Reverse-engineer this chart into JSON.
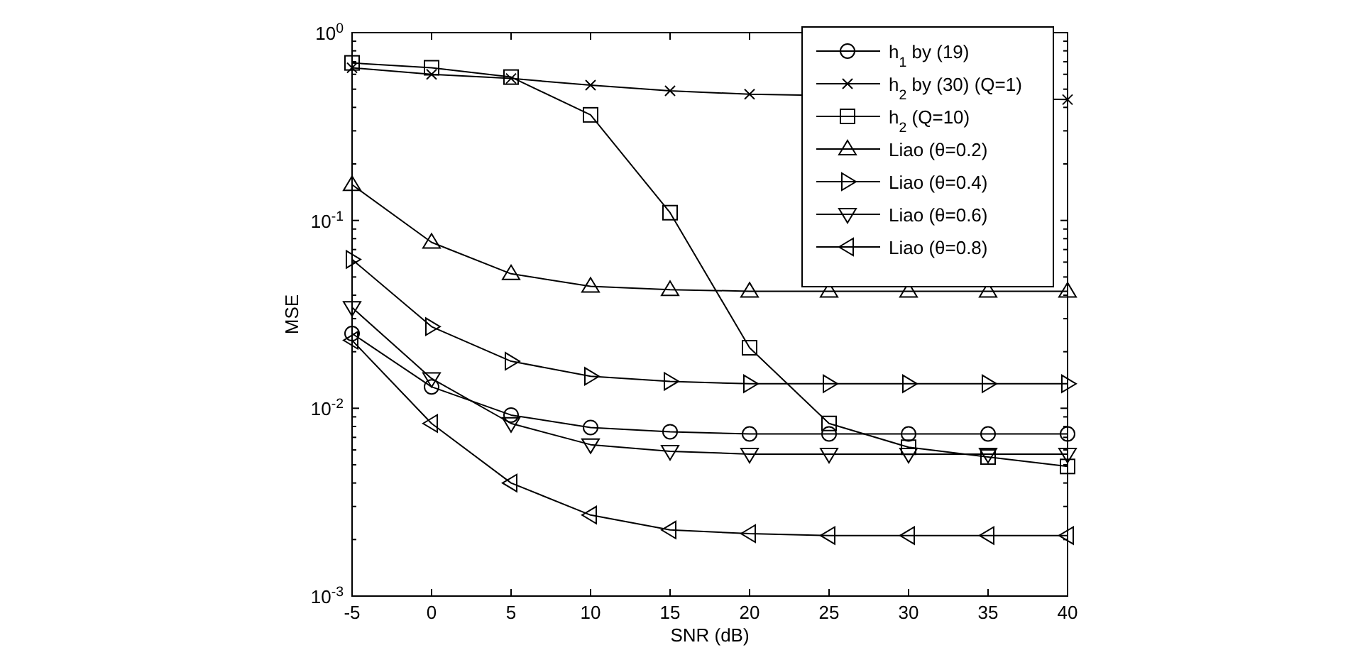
{
  "chart_data": {
    "type": "line",
    "xlabel": "SNR (dB)",
    "ylabel": "MSE",
    "log": "y",
    "legend": "top right",
    "grid": false,
    "x": [
      -5,
      0,
      5,
      10,
      15,
      20,
      25,
      30,
      35,
      40
    ],
    "xlim": [
      -5,
      40
    ],
    "xticks": [
      -5,
      0,
      5,
      10,
      15,
      20,
      25,
      30,
      35,
      40
    ],
    "ylim": [
      0.001,
      1
    ],
    "yticks": [
      {
        "value": 0.001,
        "label": "10$^{-3}$"
      },
      {
        "value": 0.002,
        "label": null
      },
      {
        "value": 0.003,
        "label": null
      },
      {
        "value": 0.004,
        "label": null
      },
      {
        "value": 0.005,
        "label": null
      },
      {
        "value": 0.006,
        "label": null
      },
      {
        "value": 0.007,
        "label": null
      },
      {
        "value": 0.008,
        "label": null
      },
      {
        "value": 0.009,
        "label": null
      },
      {
        "value": 0.01,
        "label": "10$^{-2}$"
      },
      {
        "value": 0.02,
        "label": null
      },
      {
        "value": 0.03,
        "label": null
      },
      {
        "value": 0.04,
        "label": null
      },
      {
        "value": 0.05,
        "label": null
      },
      {
        "value": 0.06,
        "label": null
      },
      {
        "value": 0.07,
        "label": null
      },
      {
        "value": 0.08,
        "label": null
      },
      {
        "value": 0.09,
        "label": null
      },
      {
        "value": 0.1,
        "label": "10$^{-1}$"
      },
      {
        "value": 0.2,
        "label": null
      },
      {
        "value": 0.3,
        "label": null
      },
      {
        "value": 0.4,
        "label": null
      },
      {
        "value": 0.5,
        "label": null
      },
      {
        "value": 0.6,
        "label": null
      },
      {
        "value": 0.7,
        "label": null
      },
      {
        "value": 0.8,
        "label": null
      },
      {
        "value": 0.9,
        "label": null
      },
      {
        "value": 1,
        "label": "10$^{0}$"
      }
    ],
    "series": [
      {
        "name": "h$_{1}$ by (19)",
        "color": "#000000",
        "marker": "circle",
        "values": [
          0.025,
          0.013,
          0.0092,
          0.0079,
          0.0075,
          0.0073,
          0.0073,
          0.0073,
          0.0073,
          0.0073
        ]
      },
      {
        "name": "h$_{2}$ by (30) (Q=1)",
        "color": "#000000",
        "marker": "cross",
        "values": [
          0.65,
          0.6,
          0.57,
          0.525,
          0.49,
          0.47,
          null,
          null,
          null,
          0.44
        ]
      },
      {
        "name": "h$_{2}$ (Q=10)",
        "color": "#000000",
        "marker": "square",
        "values": [
          0.69,
          0.65,
          0.58,
          0.365,
          0.11,
          0.021,
          0.0083,
          0.0062,
          0.0055,
          0.0049
        ]
      },
      {
        "name": "Liao (θ=0.2)",
        "color": "#000000",
        "marker": "triangle",
        "values": [
          0.155,
          0.0765,
          0.052,
          0.0446,
          0.0428,
          0.042,
          0.042,
          0.042,
          0.042,
          0.042
        ]
      },
      {
        "name": "Liao (θ=0.4)",
        "color": "#000000",
        "marker": "triangle-right",
        "values": [
          0.062,
          0.0272,
          0.0178,
          0.0148,
          0.0139,
          0.0135,
          0.0135,
          0.0135,
          0.0135,
          0.0135
        ]
      },
      {
        "name": "Liao (θ=0.6)",
        "color": "#000000",
        "marker": "triangle-down",
        "values": [
          0.0344,
          0.0144,
          0.0083,
          0.0064,
          0.0059,
          0.0057,
          0.0057,
          0.0057,
          0.0057,
          0.0057
        ]
      },
      {
        "name": "Liao (θ=0.8)",
        "color": "#000000",
        "marker": "triangle-left",
        "values": [
          0.023,
          0.0083,
          0.004,
          0.0027,
          0.00225,
          0.00215,
          0.0021,
          0.0021,
          0.0021,
          0.0021
        ]
      }
    ]
  }
}
